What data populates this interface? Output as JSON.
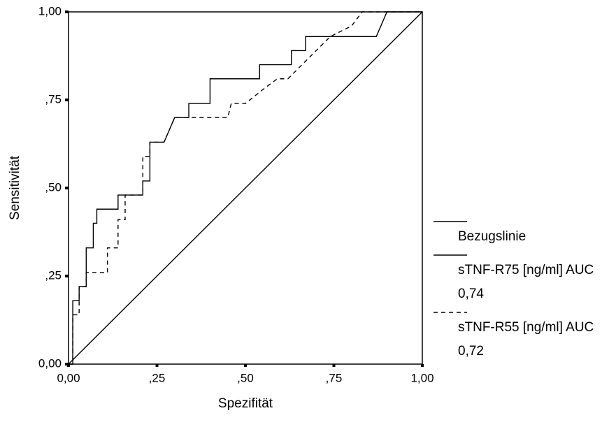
{
  "chart_data": {
    "type": "line",
    "xlabel": "Spezifität",
    "ylabel": "Sensitivität",
    "xlim": [
      0,
      1
    ],
    "ylim": [
      0,
      1
    ],
    "xticks": [
      {
        "value": 0,
        "label": "0,00"
      },
      {
        "value": 0.25,
        "label": ",25"
      },
      {
        "value": 0.5,
        "label": ",50"
      },
      {
        "value": 0.75,
        "label": ",75"
      },
      {
        "value": 1,
        "label": "1,00"
      }
    ],
    "yticks": [
      {
        "value": 0,
        "label": "0,00"
      },
      {
        "value": 0.25,
        "label": ",25"
      },
      {
        "value": 0.5,
        "label": ",50"
      },
      {
        "value": 0.75,
        "label": ",75"
      },
      {
        "value": 1,
        "label": "1,00"
      }
    ],
    "grid": false,
    "series": [
      {
        "name": "Bezugslinie",
        "color": "#000000",
        "dash": false,
        "step": false,
        "x": [
          0,
          1
        ],
        "values": [
          0,
          1
        ]
      },
      {
        "name": "sTNF-R75 [ng/ml] AUC 0,74",
        "color": "#000000",
        "dash": false,
        "step": true,
        "x": [
          0,
          0.012,
          0.012,
          0.03,
          0.03,
          0.05,
          0.05,
          0.07,
          0.07,
          0.08,
          0.08,
          0.14,
          0.14,
          0.21,
          0.21,
          0.23,
          0.23,
          0.27,
          0.3,
          0.34,
          0.34,
          0.4,
          0.4,
          0.54,
          0.54,
          0.63,
          0.63,
          0.67,
          0.67,
          0.87,
          0.9,
          1.0
        ],
        "values": [
          0,
          0,
          0.18,
          0.18,
          0.22,
          0.22,
          0.33,
          0.33,
          0.4,
          0.4,
          0.44,
          0.44,
          0.48,
          0.48,
          0.52,
          0.52,
          0.63,
          0.63,
          0.7,
          0.7,
          0.74,
          0.74,
          0.81,
          0.81,
          0.85,
          0.85,
          0.89,
          0.89,
          0.93,
          0.93,
          1.0,
          1.0
        ]
      },
      {
        "name": "sTNF-R55 [ng/ml] AUC 0,72",
        "color": "#000000",
        "dash": true,
        "step": true,
        "x": [
          0,
          0.012,
          0.012,
          0.03,
          0.03,
          0.05,
          0.05,
          0.11,
          0.11,
          0.14,
          0.14,
          0.16,
          0.16,
          0.21,
          0.21,
          0.23,
          0.23,
          0.27,
          0.3,
          0.45,
          0.46,
          0.5,
          0.55,
          0.59,
          0.62,
          0.66,
          0.7,
          0.74,
          0.8,
          0.83,
          1.0
        ],
        "values": [
          0,
          0,
          0.14,
          0.14,
          0.22,
          0.22,
          0.26,
          0.26,
          0.33,
          0.33,
          0.41,
          0.41,
          0.48,
          0.48,
          0.59,
          0.59,
          0.63,
          0.63,
          0.7,
          0.7,
          0.74,
          0.74,
          0.78,
          0.81,
          0.81,
          0.85,
          0.89,
          0.93,
          0.96,
          1.0,
          1.0
        ]
      }
    ]
  }
}
